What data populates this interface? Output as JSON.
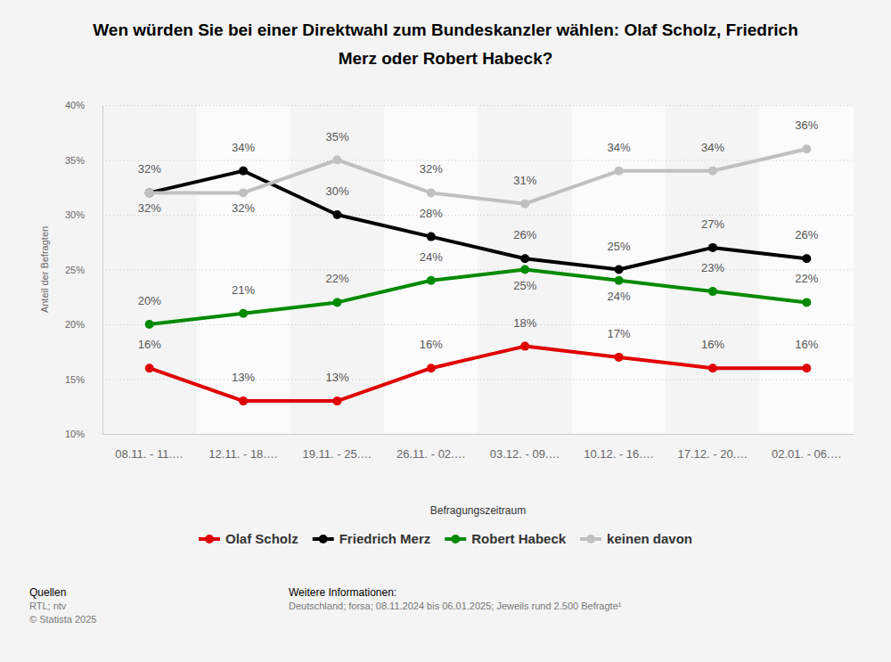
{
  "chart_data": {
    "type": "line",
    "title": "Wen würden Sie bei einer Direktwahl zum Bundeskanzler wählen: Olaf Scholz, Friedrich Merz oder Robert Habeck?",
    "x_label": "Befragungszeitraum",
    "y_label": "Anteil der Befragten",
    "categories": [
      "08.11. - 11.…",
      "12.11. - 18.…",
      "19.11. - 25.…",
      "26.11. - 02.…",
      "03.12. - 09.…",
      "10.12. - 16.…",
      "17.12. - 20.…",
      "02.01. - 06.…"
    ],
    "series": [
      {
        "name": "Olaf Scholz",
        "color": "#e00000",
        "marker": "circle",
        "line_style": "solid",
        "values": [
          16,
          13,
          13,
          16,
          18,
          17,
          16,
          16
        ],
        "value_labels": [
          "16%",
          "13%",
          "13%",
          "16%",
          "18%",
          "17%",
          "16%",
          "16%"
        ]
      },
      {
        "name": "Friedrich Merz",
        "color": "#000000",
        "marker": "circle",
        "line_style": "solid",
        "values": [
          32,
          34,
          30,
          28,
          26,
          25,
          27,
          26
        ],
        "value_labels": [
          "32%",
          "34%",
          "30%",
          "28%",
          "26%",
          "25%",
          "27%",
          "26%"
        ]
      },
      {
        "name": "Robert Habeck",
        "color": "#008a00",
        "marker": "circle",
        "line_style": "solid",
        "values": [
          20,
          21,
          22,
          24,
          25,
          24,
          23,
          22
        ],
        "value_labels": [
          "20%",
          "21%",
          "22%",
          "24%",
          "25%",
          "24%",
          "23%",
          "22%"
        ]
      },
      {
        "name": "keinen davon",
        "color": "#c0c0c0",
        "marker": "circle",
        "line_style": "solid",
        "values": [
          32,
          32,
          35,
          32,
          31,
          34,
          34,
          36
        ],
        "value_labels": [
          "32%",
          "32%",
          "35%",
          "32%",
          "31%",
          "34%",
          "34%",
          "36%"
        ]
      }
    ],
    "ylim": [
      10,
      40
    ],
    "yticks": [
      {
        "value": 10,
        "label": "10%"
      },
      {
        "value": 15,
        "label": "15%"
      },
      {
        "value": 20,
        "label": "20%"
      },
      {
        "value": 25,
        "label": "25%"
      },
      {
        "value": 30,
        "label": "30%"
      },
      {
        "value": 35,
        "label": "35%"
      },
      {
        "value": 40,
        "label": "40%"
      }
    ],
    "grid": true,
    "legend": "bottom",
    "data_labels": true,
    "source_title": "Quellen",
    "source": "RTL; ntv",
    "copyright": "© Statista 2025",
    "info_title": "Weitere Informationen:",
    "info": "Deutschland; forsa; 08.11.2024 bis 06.01.2025; Jeweils rund 2.500 Befragte¹"
  }
}
